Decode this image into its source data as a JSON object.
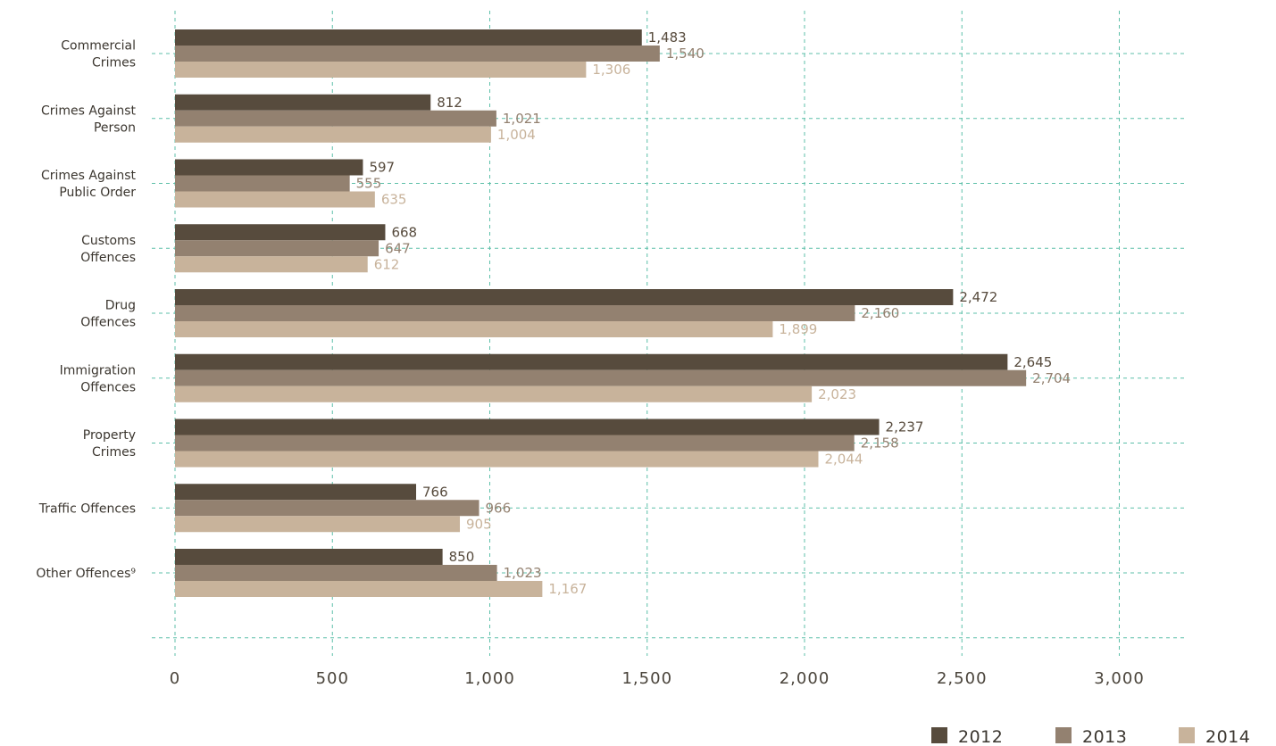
{
  "chart_data": {
    "type": "bar",
    "orientation": "horizontal",
    "categories": [
      [
        "Commercial",
        "Crimes"
      ],
      [
        "Crimes Against",
        "Person"
      ],
      [
        "Crimes Against",
        "Public Order"
      ],
      [
        "Customs",
        "Offences"
      ],
      [
        "Drug",
        "Offences"
      ],
      [
        "Immigration",
        "Offences"
      ],
      [
        "Property",
        "Crimes"
      ],
      [
        "Traffic Offences"
      ],
      [
        "Other Offences⁹"
      ]
    ],
    "series": [
      {
        "name": "2012",
        "color": "#574b3d",
        "label_color": "#574b3d",
        "values": [
          1483,
          812,
          597,
          668,
          2472,
          2645,
          2237,
          766,
          850
        ]
      },
      {
        "name": "2013",
        "color": "#938170",
        "label_color": "#938170",
        "values": [
          1540,
          1021,
          555,
          647,
          2160,
          2704,
          2158,
          966,
          1023
        ]
      },
      {
        "name": "2014",
        "color": "#c8b39b",
        "label_color": "#c8b39b",
        "values": [
          1306,
          1004,
          635,
          612,
          1899,
          2023,
          2044,
          905,
          1167
        ]
      }
    ],
    "value_labels": [
      [
        "1,483",
        "812",
        "597",
        "668",
        "2,472",
        "2,645",
        "2,237",
        "766",
        "850"
      ],
      [
        "1,540",
        "1,021",
        "555",
        "647",
        "2,160",
        "2,704",
        "2,158",
        "966",
        "1,023"
      ],
      [
        "1,306",
        "1,004",
        "635",
        "612",
        "1,899",
        "2,023",
        "2,044",
        "905",
        "1,167"
      ]
    ],
    "x_ticks": [
      0,
      500,
      1000,
      1500,
      2000,
      2500,
      3000
    ],
    "x_tick_labels": [
      "0",
      "500",
      "1,000",
      "1,500",
      "2,000",
      "2,500",
      "3,000"
    ],
    "xlim": [
      0,
      3000
    ],
    "grid": true,
    "grid_color": "#5cbfa8",
    "legend_position": "bottom-right",
    "title": "",
    "xlabel": "",
    "ylabel": ""
  }
}
